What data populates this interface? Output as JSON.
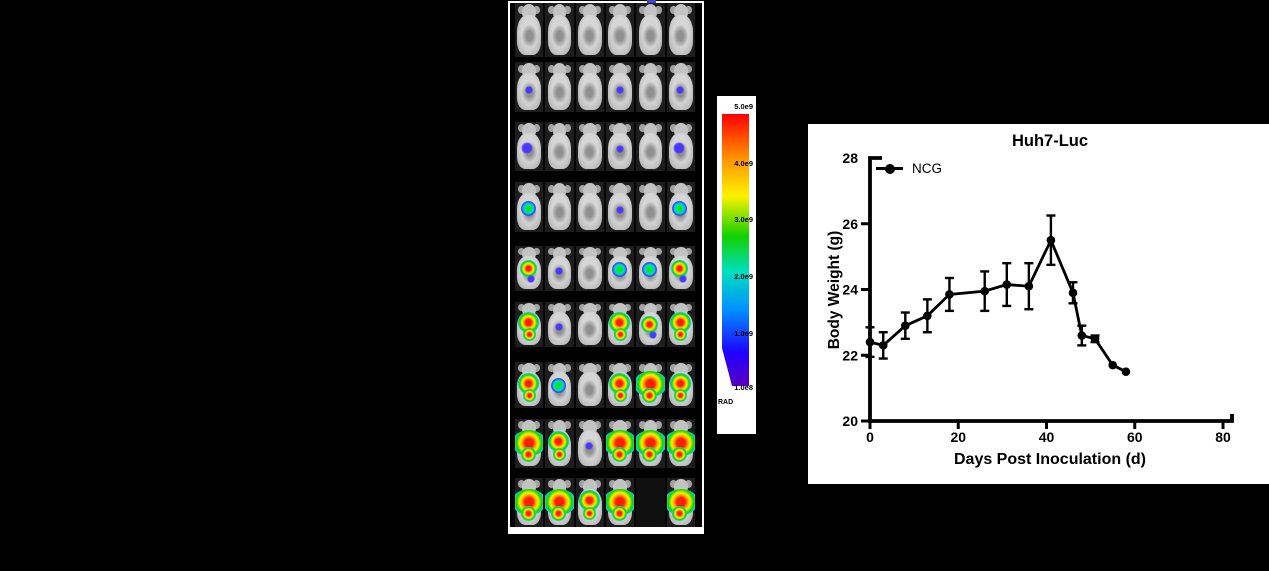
{
  "figure": {
    "background": "#000000"
  },
  "mouse_panel": {
    "rows": [
      {
        "signals": [
          "0",
          "0",
          "0",
          "0",
          "0",
          "0"
        ]
      },
      {
        "signals": [
          "1",
          "0",
          "0",
          "1",
          "0",
          "1"
        ]
      },
      {
        "signals": [
          "2",
          "0",
          "0",
          "1",
          "0",
          "2"
        ]
      },
      {
        "signals": [
          "3",
          "0",
          "0",
          "1",
          "0",
          "3"
        ]
      },
      {
        "signals": [
          "4",
          "1",
          "0",
          "3",
          "3",
          "4"
        ]
      },
      {
        "signals": [
          "5",
          "1",
          "0",
          "5",
          "4",
          "5"
        ]
      },
      {
        "signals": [
          "5",
          "3",
          "0",
          "5",
          "6",
          "5"
        ]
      },
      {
        "signals": [
          "6",
          "5",
          "1",
          "6",
          "6",
          "6"
        ]
      },
      {
        "signals": [
          "6",
          "6",
          "5",
          "6",
          "-",
          "6"
        ]
      }
    ]
  },
  "colorbar": {
    "labels": [
      "5.0e9",
      "4.0e9",
      "3.0e9",
      "2.0e9",
      "1.0e9",
      "1.0e8"
    ],
    "unit_label": "RAD",
    "gradient_colors": [
      "#ff0000",
      "#ff9000",
      "#fff200",
      "#12d000",
      "#00e0c0",
      "#0090ff",
      "#2000ff",
      "#5a00c0"
    ]
  },
  "chart_data": {
    "type": "line",
    "title": "Huh7-Luc",
    "xlabel": "Days Post Inoculation (d)",
    "ylabel": "Body Weight (g)",
    "xlim": [
      0,
      80
    ],
    "ylim": [
      20,
      28
    ],
    "x_ticks": [
      0,
      20,
      40,
      60,
      80
    ],
    "y_ticks": [
      20,
      22,
      24,
      26,
      28
    ],
    "grid": false,
    "legend_position": "top-left",
    "legend": [
      "NCG"
    ],
    "series": [
      {
        "name": "NCG",
        "color": "#000000",
        "marker": "circle",
        "x": [
          0,
          3,
          8,
          13,
          18,
          26,
          31,
          36,
          41,
          46,
          48,
          51,
          55,
          58
        ],
        "y": [
          22.4,
          22.3,
          22.9,
          23.2,
          23.85,
          23.95,
          24.15,
          24.1,
          25.5,
          23.9,
          22.6,
          22.5,
          21.7,
          21.5
        ],
        "err": [
          0.45,
          0.4,
          0.4,
          0.5,
          0.5,
          0.6,
          0.65,
          0.7,
          0.75,
          0.32,
          0.3,
          0.1,
          0,
          0
        ]
      }
    ]
  }
}
